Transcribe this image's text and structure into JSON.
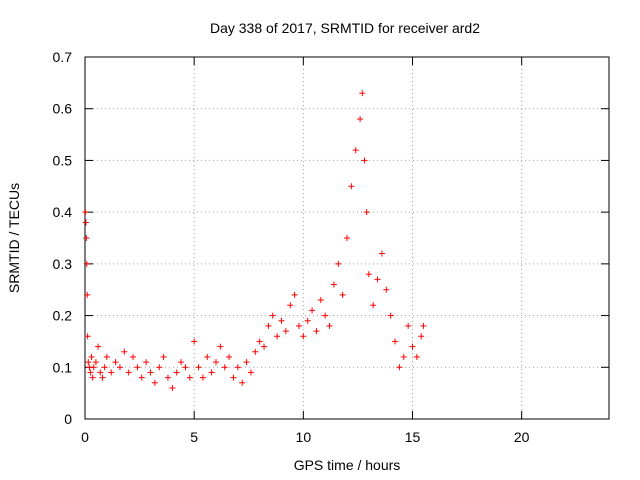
{
  "chart_data": {
    "type": "scatter",
    "title": "Day 338 of 2017, SRMTID for receiver ard2",
    "xlabel": "GPS time / hours",
    "ylabel": "SRMTID / TECUs",
    "xlim": [
      0,
      24
    ],
    "ylim": [
      0,
      0.7
    ],
    "xticks": [
      0,
      5,
      10,
      15,
      20
    ],
    "yticks": [
      0,
      0.1,
      0.2,
      0.3,
      0.4,
      0.5,
      0.6,
      0.7
    ],
    "xtick_labels": [
      "0",
      "5",
      "10",
      "15",
      "20"
    ],
    "ytick_labels": [
      "0",
      "0.1",
      "0.2",
      "0.3",
      "0.4",
      "0.5",
      "0.6",
      "0.7"
    ],
    "grid": true,
    "marker": "+",
    "color": "#ff0000",
    "series": [
      {
        "name": "ard2",
        "x": [
          0.02,
          0.04,
          0.06,
          0.08,
          0.1,
          0.12,
          0.15,
          0.2,
          0.25,
          0.3,
          0.35,
          0.4,
          0.5,
          0.6,
          0.7,
          0.8,
          0.9,
          1.0,
          1.2,
          1.4,
          1.6,
          1.8,
          2.0,
          2.2,
          2.4,
          2.6,
          2.8,
          3.0,
          3.2,
          3.4,
          3.6,
          3.8,
          4.0,
          4.2,
          4.4,
          4.6,
          4.8,
          5.0,
          5.2,
          5.4,
          5.6,
          5.8,
          6.0,
          6.2,
          6.4,
          6.6,
          6.8,
          7.0,
          7.2,
          7.4,
          7.6,
          7.8,
          8.0,
          8.2,
          8.4,
          8.6,
          8.8,
          9.0,
          9.2,
          9.4,
          9.6,
          9.8,
          10.0,
          10.2,
          10.4,
          10.6,
          10.8,
          11.0,
          11.2,
          11.4,
          11.6,
          11.8,
          12.0,
          12.2,
          12.4,
          12.6,
          12.7,
          12.8,
          12.9,
          13.0,
          13.2,
          13.4,
          13.6,
          13.8,
          14.0,
          14.2,
          14.4,
          14.6,
          14.8,
          15.0,
          15.2,
          15.4,
          15.5
        ],
        "y": [
          0.4,
          0.38,
          0.35,
          0.3,
          0.24,
          0.16,
          0.11,
          0.1,
          0.09,
          0.12,
          0.08,
          0.1,
          0.11,
          0.14,
          0.09,
          0.08,
          0.1,
          0.12,
          0.09,
          0.11,
          0.1,
          0.13,
          0.09,
          0.12,
          0.1,
          0.08,
          0.11,
          0.09,
          0.07,
          0.1,
          0.12,
          0.08,
          0.06,
          0.09,
          0.11,
          0.1,
          0.08,
          0.15,
          0.1,
          0.08,
          0.12,
          0.09,
          0.11,
          0.14,
          0.1,
          0.12,
          0.08,
          0.1,
          0.07,
          0.11,
          0.09,
          0.13,
          0.15,
          0.14,
          0.18,
          0.2,
          0.16,
          0.19,
          0.17,
          0.22,
          0.24,
          0.18,
          0.16,
          0.19,
          0.21,
          0.17,
          0.23,
          0.2,
          0.18,
          0.26,
          0.3,
          0.24,
          0.35,
          0.45,
          0.52,
          0.58,
          0.63,
          0.5,
          0.4,
          0.28,
          0.22,
          0.27,
          0.32,
          0.25,
          0.2,
          0.15,
          0.1,
          0.12,
          0.18,
          0.14,
          0.12,
          0.16,
          0.18
        ]
      }
    ]
  }
}
